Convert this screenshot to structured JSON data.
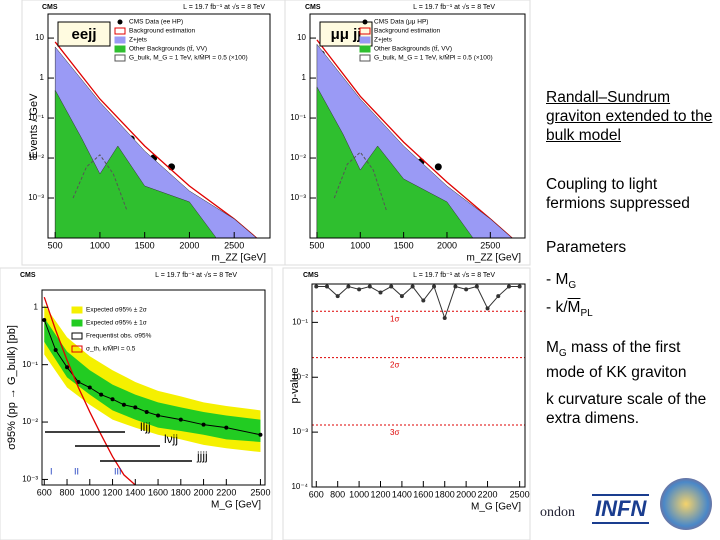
{
  "plots": [
    {
      "cms": "CMS",
      "lumi": "L = 19.7 fb⁻¹ at √s = 8 TeV",
      "tag": "eejj",
      "y_label": "Events / GeV",
      "x_label": "m_ZZ [GeV]",
      "xlim": [
        420,
        2900
      ],
      "ylim": [
        0.0001,
        40
      ],
      "xticks": [
        500,
        1000,
        1500,
        2000,
        2500
      ],
      "yticks": [
        10,
        1,
        {
          "value": 0.1,
          "label": "10⁻¹"
        },
        {
          "value": 0.01,
          "label": "10⁻²"
        },
        {
          "value": 0.001,
          "label": "10⁻³"
        }
      ],
      "series": [
        {
          "name": "CMS Data (ee HP)",
          "type": "points",
          "color": "#000000",
          "x": [
            550,
            650,
            750,
            850,
            950,
            1050,
            1150,
            1250,
            1350,
            1450,
            1600,
            1800
          ],
          "values": [
            3,
            1.2,
            0.5,
            0.25,
            0.12,
            0.06,
            0.05,
            0.02,
            0.03,
            0.012,
            0.01,
            0.006
          ]
        },
        {
          "name": "Background estimation",
          "type": "line",
          "color": "#e00000",
          "x": [
            500,
            1000,
            1500,
            2000,
            2500,
            2750
          ],
          "values": [
            8,
            0.3,
            0.02,
            0.002,
            0.0003,
            0.0001
          ]
        },
        {
          "name": "Z+jets",
          "type": "area",
          "color": "#9a9af5",
          "x": [
            500,
            1000,
            1500,
            2000,
            2500,
            2750
          ],
          "values": [
            6,
            0.25,
            0.015,
            0.0015,
            0.0003,
            0.0001
          ]
        },
        {
          "name": "Other Backgrounds (tt̄, VV)",
          "type": "area",
          "color": "#2fbf2f",
          "x": [
            500,
            800,
            1000,
            1200,
            1500,
            2000,
            2300
          ],
          "values": [
            0.5,
            0.03,
            0.004,
            0.02,
            0.002,
            0.0008,
            0.0001
          ]
        },
        {
          "name": "G_bulk, M_G = 1 TeV, k/M̄Pl = 0.5 (×100)",
          "type": "dashed",
          "color": "#555555",
          "x": [
            700,
            850,
            1000,
            1150,
            1300
          ],
          "values": [
            0.001,
            0.006,
            0.012,
            0.004,
            0.0005
          ]
        }
      ]
    },
    {
      "cms": "CMS",
      "lumi": "L = 19.7 fb⁻¹ at √s = 8 TeV",
      "tag": "μμ jj",
      "y_label": null,
      "x_label": "m_ZZ [GeV]",
      "xlim": [
        420,
        2900
      ],
      "ylim": [
        0.0001,
        40
      ],
      "xticks": [
        500,
        1000,
        1500,
        2000,
        2500
      ],
      "yticks": [
        10,
        1,
        {
          "value": 0.1,
          "label": "10⁻¹"
        },
        {
          "value": 0.01,
          "label": "10⁻²"
        },
        {
          "value": 0.001,
          "label": "10⁻³"
        }
      ],
      "series": [
        {
          "name": "CMS Data (μμ HP)",
          "type": "points",
          "color": "#000000",
          "x": [
            550,
            650,
            750,
            850,
            950,
            1050,
            1150,
            1250,
            1350,
            1450,
            1550,
            1700,
            1900
          ],
          "values": [
            4,
            1.5,
            0.6,
            0.3,
            0.15,
            0.08,
            0.04,
            0.05,
            0.02,
            0.015,
            0.01,
            0.008,
            0.006
          ]
        },
        {
          "name": "Background estimation",
          "type": "line",
          "color": "#e00000",
          "x": [
            500,
            1000,
            1500,
            2000,
            2500,
            2750
          ],
          "values": [
            9,
            0.35,
            0.025,
            0.0025,
            0.0003,
            0.0001
          ]
        },
        {
          "name": "Z+jets",
          "type": "area",
          "color": "#9a9af5",
          "x": [
            500,
            1000,
            1500,
            2000,
            2500,
            2750
          ],
          "values": [
            7,
            0.3,
            0.02,
            0.002,
            0.0003,
            0.0001
          ]
        },
        {
          "name": "Other Backgrounds (tt̄, VV)",
          "type": "area",
          "color": "#2fbf2f",
          "x": [
            500,
            800,
            1000,
            1200,
            1500,
            2000,
            2300
          ],
          "values": [
            0.6,
            0.04,
            0.005,
            0.02,
            0.003,
            0.0008,
            0.0001
          ]
        },
        {
          "name": "G_bulk, M_G = 1 TeV, k/M̄Pl = 0.5 (×100)",
          "type": "dashed",
          "color": "#555555",
          "x": [
            700,
            850,
            1000,
            1150,
            1300
          ],
          "values": [
            0.001,
            0.007,
            0.014,
            0.005,
            0.0005
          ]
        }
      ]
    },
    {
      "cms": "CMS",
      "lumi": "L = 19.7 fb⁻¹ at √s = 8 TeV",
      "tag": null,
      "y_label": "σ95% (pp → G_bulk) [pb]",
      "x_label": "M_G [GeV]",
      "xlim": [
        580,
        2540
      ],
      "ylim": [
        0.0008,
        2
      ],
      "xticks": [
        600,
        800,
        1000,
        1200,
        1400,
        1600,
        1800,
        2000,
        2200,
        2500
      ],
      "yticks": [
        1,
        {
          "value": 0.1,
          "label": "10⁻¹"
        },
        {
          "value": 0.01,
          "label": "10⁻²"
        },
        {
          "value": 0.001,
          "label": "10⁻³"
        }
      ],
      "series": [
        {
          "name": "Expected σ95% ± 2σ",
          "type": "band",
          "color": "#f5f000",
          "x": [
            600,
            800,
            1000,
            1200,
            1400,
            1600,
            1800,
            2000,
            2200,
            2500
          ],
          "lower": [
            0.15,
            0.04,
            0.02,
            0.011,
            0.008,
            0.006,
            0.005,
            0.004,
            0.0035,
            0.003
          ],
          "upper": [
            1.1,
            0.3,
            0.14,
            0.08,
            0.05,
            0.035,
            0.028,
            0.022,
            0.019,
            0.016
          ]
        },
        {
          "name": "Expected σ95% ± 1σ",
          "type": "band",
          "color": "#22cc22",
          "x": [
            600,
            800,
            1000,
            1200,
            1400,
            1600,
            1800,
            2000,
            2200,
            2500
          ],
          "lower": [
            0.25,
            0.06,
            0.03,
            0.016,
            0.011,
            0.008,
            0.007,
            0.006,
            0.005,
            0.0045
          ],
          "upper": [
            0.65,
            0.17,
            0.08,
            0.045,
            0.03,
            0.022,
            0.018,
            0.015,
            0.013,
            0.011
          ]
        },
        {
          "name": "Frequentist obs. σ95%",
          "type": "pointline",
          "color": "#000000",
          "x": [
            600,
            700,
            800,
            900,
            1000,
            1100,
            1200,
            1300,
            1400,
            1500,
            1600,
            1800,
            2000,
            2200,
            2500
          ],
          "values": [
            0.6,
            0.18,
            0.09,
            0.05,
            0.04,
            0.03,
            0.025,
            0.02,
            0.018,
            0.015,
            0.013,
            0.011,
            0.009,
            0.008,
            0.006
          ]
        },
        {
          "name": "σ_th, k/M̄Pl = 0.5",
          "type": "line",
          "color": "#e00000",
          "x": [
            600,
            700,
            800,
            900,
            1000,
            1100,
            1200,
            1300,
            1400
          ],
          "values": [
            1.5,
            0.4,
            0.12,
            0.04,
            0.015,
            0.006,
            0.0025,
            0.0012,
            0.0008
          ]
        }
      ],
      "annotations": [
        "lljj",
        "lνjj",
        "jjjj",
        "I",
        "II",
        "III"
      ]
    },
    {
      "cms": "CMS",
      "lumi": "L = 19.7 fb⁻¹ at √s = 8 TeV",
      "tag": null,
      "y_label": "p-value",
      "x_label": "M_G [GeV]",
      "xlim": [
        560,
        2550
      ],
      "ylim": [
        0.0001,
        0.5
      ],
      "xticks": [
        600,
        800,
        1000,
        1200,
        1400,
        1600,
        1800,
        2000,
        2200,
        2500
      ],
      "yticks": [
        {
          "value": 0.1,
          "label": "10⁻¹"
        },
        {
          "value": 0.01,
          "label": "10⁻²"
        },
        {
          "value": 0.001,
          "label": "10⁻³"
        },
        {
          "value": 0.0001,
          "label": "10⁻⁴"
        }
      ],
      "sigma_lines": [
        {
          "value": 0.159,
          "label": "1σ"
        },
        {
          "value": 0.0228,
          "label": "2σ"
        },
        {
          "value": 0.00135,
          "label": "3σ"
        }
      ],
      "series": [
        {
          "name": "p-value",
          "type": "pointline",
          "color": "#333333",
          "x": [
            600,
            700,
            800,
            900,
            1000,
            1100,
            1200,
            1300,
            1400,
            1500,
            1600,
            1700,
            1800,
            1900,
            2000,
            2100,
            2200,
            2300,
            2400,
            2500
          ],
          "values": [
            0.45,
            0.45,
            0.3,
            0.45,
            0.4,
            0.45,
            0.35,
            0.45,
            0.3,
            0.45,
            0.25,
            0.45,
            0.12,
            0.45,
            0.4,
            0.45,
            0.18,
            0.3,
            0.45,
            0.45
          ]
        }
      ]
    }
  ],
  "notes": {
    "title": "Randall–Sundrum graviton extended to the bulk model",
    "coupling": "Coupling to light fermions suppressed",
    "parameters": "Parameters",
    "p1": [
      "- M",
      "G"
    ],
    "p2": [
      "- k/",
      "M",
      "PL"
    ],
    "mg": [
      "M",
      "G",
      " mass of the first mode of  KK graviton"
    ],
    "k": "k  curvature scale of the extra dimens."
  },
  "footer": {
    "left": "ondon",
    "logo": "INFN"
  }
}
